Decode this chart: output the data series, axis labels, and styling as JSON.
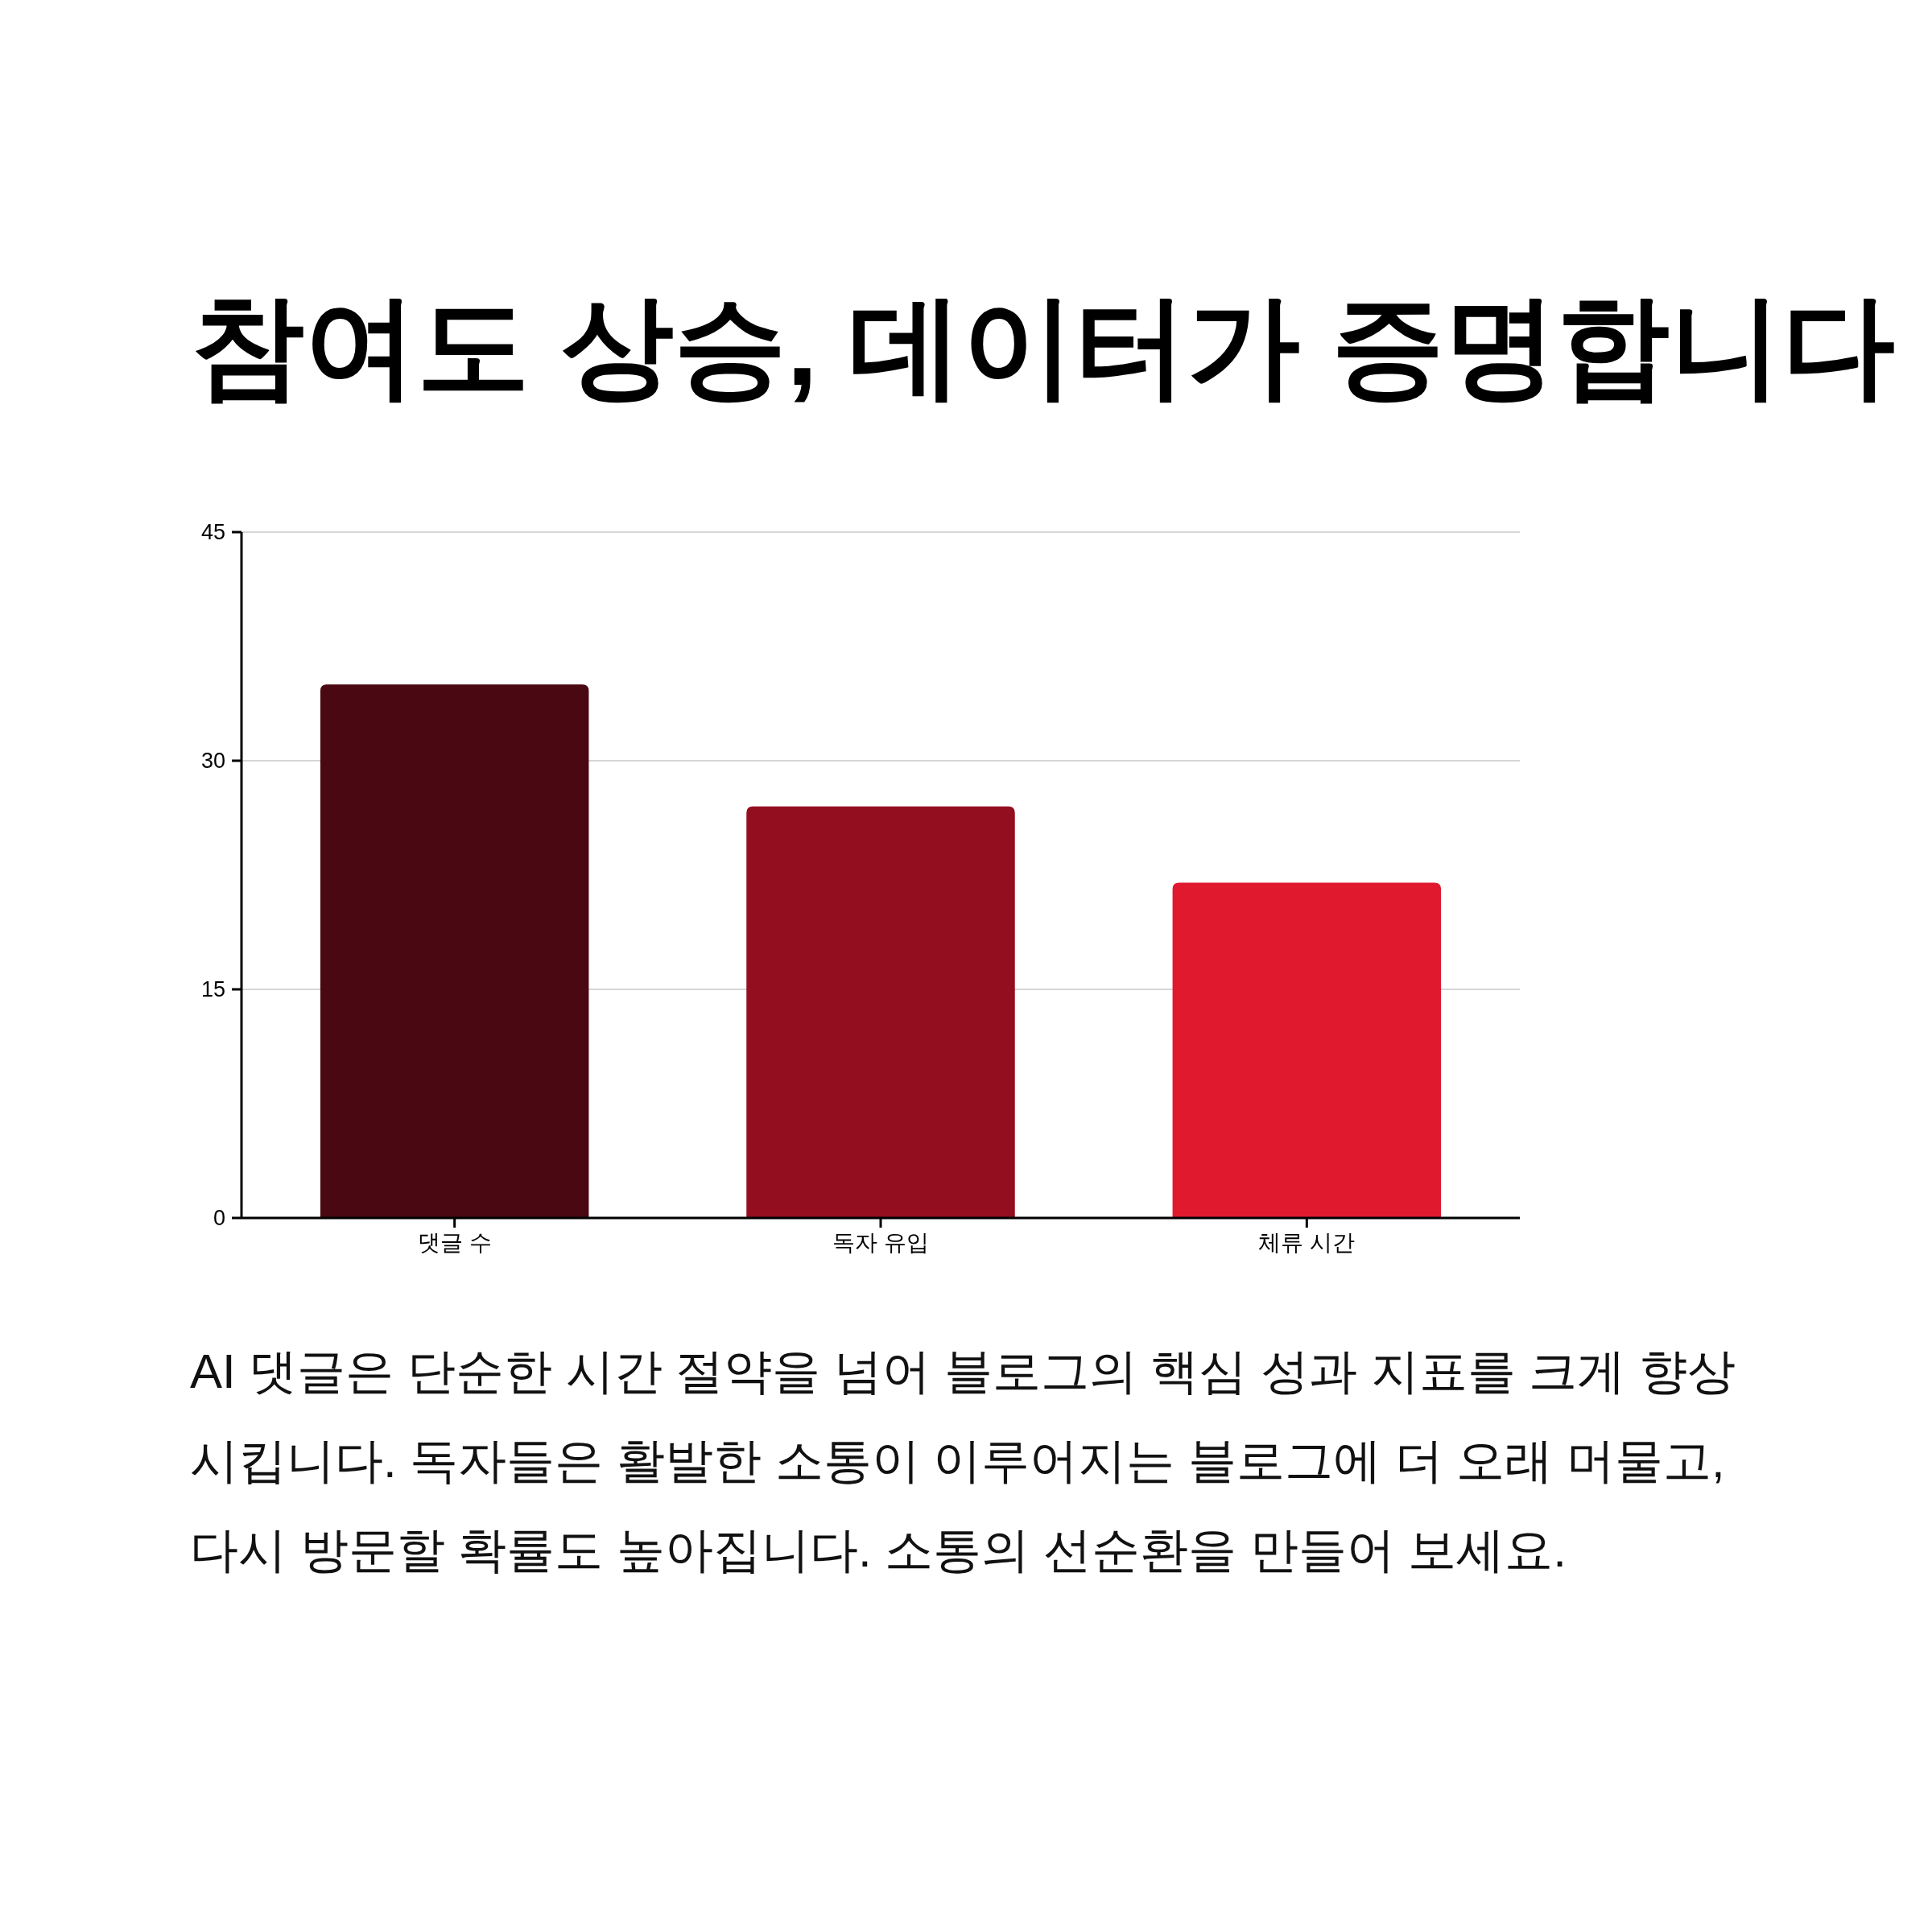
{
  "chart_data": {
    "type": "bar",
    "title": "참여도 상승, 데이터가 증명합니다",
    "categories": [
      "댓글 수",
      "독자 유입",
      "체류 시간"
    ],
    "values": [
      35,
      27,
      22
    ],
    "colors": [
      "#4a0812",
      "#930f20",
      "#e0192f"
    ],
    "ylim": [
      0,
      45
    ],
    "yticks": [
      0,
      15,
      30,
      45
    ],
    "grid": "y",
    "annotations": [
      "AI 댓글은 단순한 시간 절약을 넘어 블로그의 핵심 성과 지표를 크게 향상시킵니다. 독자들은 활발한 소통이 이루어지는 블로그에 더 오래 머물고, 다시 방문할 확률도 높아집니다. 소통의 선순환을 만들어 보세요."
    ]
  }
}
